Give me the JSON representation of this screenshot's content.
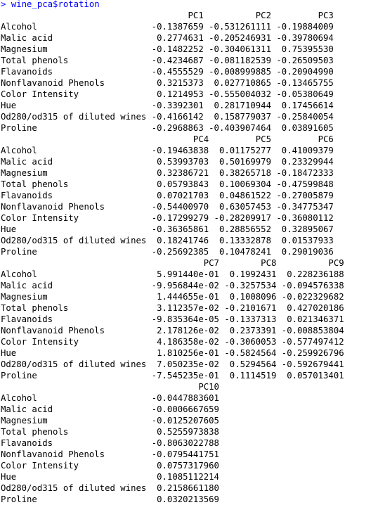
{
  "prompt": "> ",
  "command": "wine_pca$rotation",
  "colors": {
    "prompt": "#0000ff",
    "command": "#0000ff",
    "output": "#000000",
    "background": "#ffffff"
  },
  "blocks": [
    {
      "headers": [
        "PC1",
        "PC2",
        "PC3"
      ],
      "rows": [
        [
          "Alcohol",
          "-0.1387659",
          "-0.531261111",
          "-0.19884009"
        ],
        [
          "Malic acid",
          "0.2774631",
          "-0.205246931",
          "-0.39780694"
        ],
        [
          "Magnesium",
          "-0.1482252",
          "-0.304061311",
          "0.75395530"
        ],
        [
          "Total phenols",
          "-0.4234687",
          "-0.081182539",
          "-0.26509503"
        ],
        [
          "Flavanoids",
          "-0.4555529",
          "-0.008999885",
          "-0.20904990"
        ],
        [
          "Nonflavanoid Phenols",
          "0.3215373",
          "0.027710865",
          "-0.13465755"
        ],
        [
          "Color Intensity",
          "0.1214953",
          "-0.555004032",
          "-0.05380649"
        ],
        [
          "Hue",
          "-0.3392301",
          "0.281710944",
          "0.17456614"
        ],
        [
          "Od280/od315 of diluted wines",
          "-0.4166142",
          "0.158779037",
          "-0.25840054"
        ],
        [
          "Proline",
          "-0.2968863",
          "-0.403907464",
          "0.03891605"
        ]
      ]
    },
    {
      "headers": [
        "PC4",
        "PC5",
        "PC6"
      ],
      "rows": [
        [
          "Alcohol",
          "-0.19463838",
          "0.01175277",
          "0.41009379"
        ],
        [
          "Malic acid",
          "0.53993703",
          "0.50169979",
          "0.23329944"
        ],
        [
          "Magnesium",
          "0.32386721",
          "0.38265718",
          "-0.18472333"
        ],
        [
          "Total phenols",
          "0.05793843",
          "0.10069304",
          "-0.47599848"
        ],
        [
          "Flavanoids",
          "0.07021703",
          "0.04861522",
          "-0.27005879"
        ],
        [
          "Nonflavanoid Phenols",
          "-0.54400970",
          "0.63057453",
          "-0.34775347"
        ],
        [
          "Color Intensity",
          "-0.17299279",
          "-0.28209917",
          "-0.36080112"
        ],
        [
          "Hue",
          "-0.36365861",
          "0.28856552",
          "0.32895067"
        ],
        [
          "Od280/od315 of diluted wines",
          "0.18241746",
          "0.13332878",
          "0.01537933"
        ],
        [
          "Proline",
          "-0.25692385",
          "0.10478241",
          "0.29019036"
        ]
      ]
    },
    {
      "headers": [
        "PC7",
        "PC8",
        "PC9"
      ],
      "rows": [
        [
          "Alcohol",
          "5.991440e-01",
          "0.1992431",
          "0.228236188"
        ],
        [
          "Malic acid",
          "-9.956844e-02",
          "-0.3257534",
          "-0.094576338"
        ],
        [
          "Magnesium",
          "1.444655e-01",
          "0.1008096",
          "-0.022329682"
        ],
        [
          "Total phenols",
          "3.112357e-02",
          "-0.2101671",
          "0.427020186"
        ],
        [
          "Flavanoids",
          "-9.835364e-05",
          "-0.1337313",
          "0.021346371"
        ],
        [
          "Nonflavanoid Phenols",
          "2.178126e-02",
          "0.2373391",
          "-0.008853804"
        ],
        [
          "Color Intensity",
          "4.186358e-02",
          "-0.3060053",
          "-0.577497412"
        ],
        [
          "Hue",
          "1.810256e-01",
          "-0.5824564",
          "-0.259926796"
        ],
        [
          "Od280/od315 of diluted wines",
          "7.050235e-02",
          "0.5294564",
          "-0.592679441"
        ],
        [
          "Proline",
          "-7.545235e-01",
          "0.1114519",
          "0.057013401"
        ]
      ]
    },
    {
      "headers": [
        "PC10"
      ],
      "rows": [
        [
          "Alcohol",
          "-0.0447883601"
        ],
        [
          "Malic acid",
          "-0.0006667659"
        ],
        [
          "Magnesium",
          "-0.0125207605"
        ],
        [
          "Total phenols",
          "0.5255973838"
        ],
        [
          "Flavanoids",
          "-0.8063022788"
        ],
        [
          "Nonflavanoid Phenols",
          "-0.0795441751"
        ],
        [
          "Color Intensity",
          "0.0757317960"
        ],
        [
          "Hue",
          "0.1085112214"
        ],
        [
          "Od280/od315 of diluted wines",
          "0.2158661180"
        ],
        [
          "Proline",
          "0.0320213569"
        ]
      ]
    }
  ]
}
